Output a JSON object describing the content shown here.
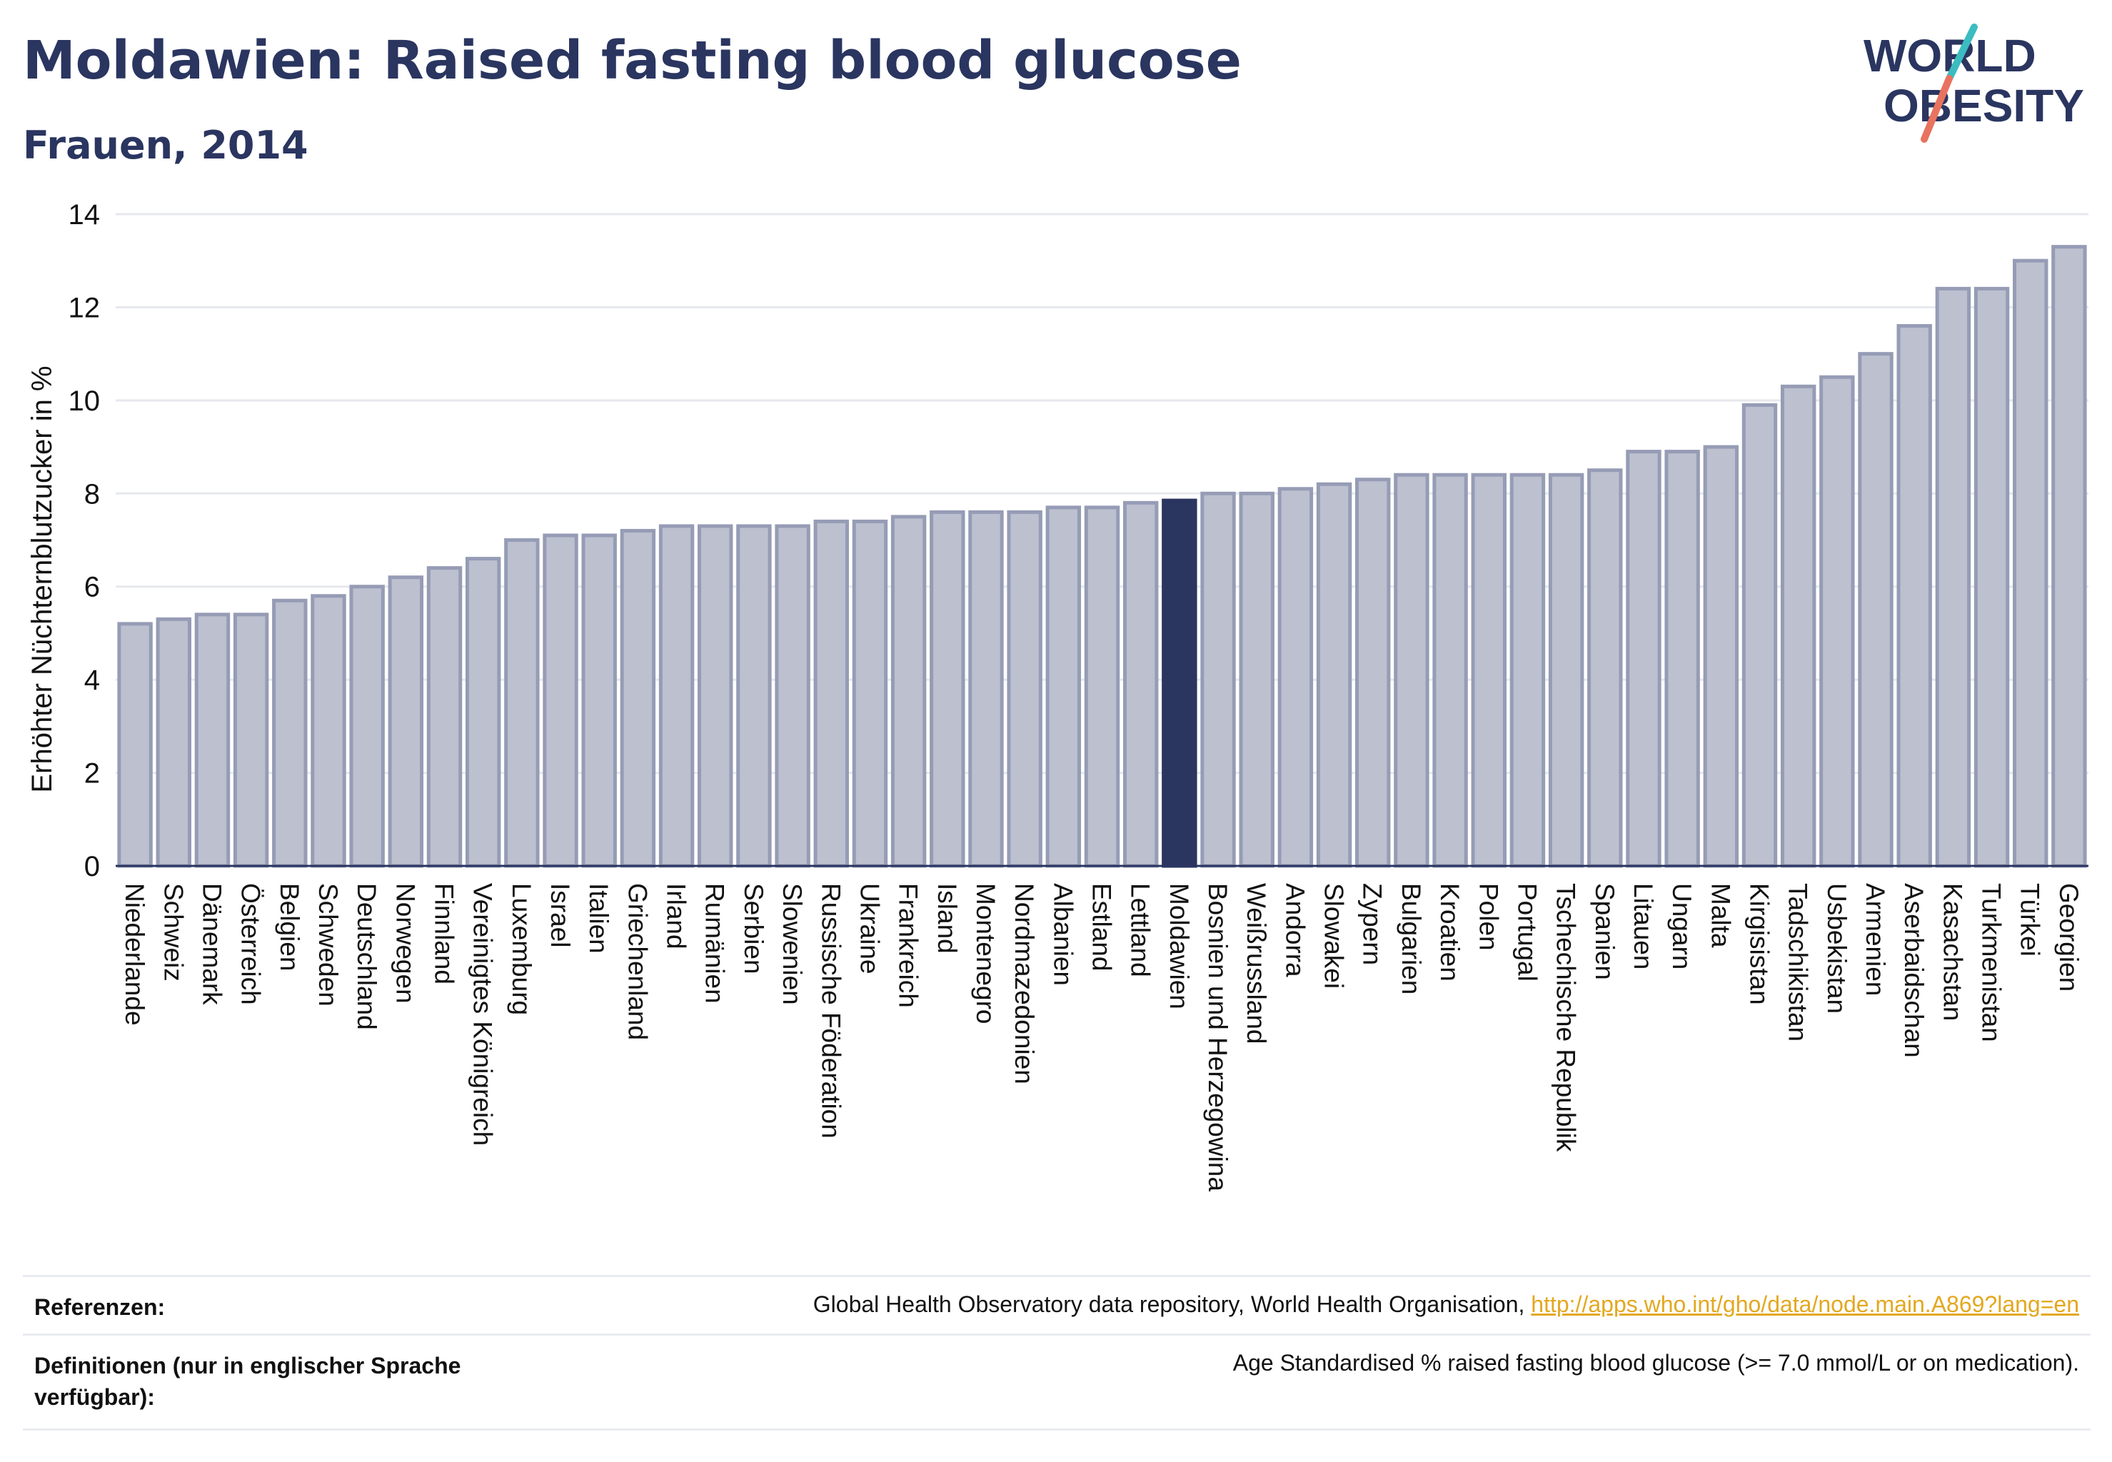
{
  "header": {
    "title": "Moldawien: Raised fasting blood glucose",
    "subtitle": "Frauen, 2014"
  },
  "logo": {
    "line1": "WORLD",
    "line2": "OBESITY",
    "icon": "world-obesity-logo"
  },
  "colors": {
    "bar": "#bcc0cf",
    "bar_border": "#969cb5",
    "highlight": "#2a3560",
    "grid": "#e6e8ee",
    "text": "#2a3560"
  },
  "chart_data": {
    "type": "bar",
    "title": "Moldawien: Raised fasting blood glucose",
    "subtitle": "Frauen, 2014",
    "ylabel": "Erhöhter Nüchternblutzucker in %",
    "xlabel": "",
    "ylim": [
      0,
      14
    ],
    "yticks": [
      0,
      2,
      4,
      6,
      8,
      10,
      12,
      14
    ],
    "grid": true,
    "highlight": "Moldawien",
    "categories": [
      "Niederlande",
      "Schweiz",
      "Dänemark",
      "Österreich",
      "Belgien",
      "Schweden",
      "Deutschland",
      "Norwegen",
      "Finnland",
      "Vereinigtes Königreich",
      "Luxemburg",
      "Israel",
      "Italien",
      "Griechenland",
      "Irland",
      "Rumänien",
      "Serbien",
      "Slowenien",
      "Russische Föderation",
      "Ukraine",
      "Frankreich",
      "Island",
      "Montenegro",
      "Nordmazedonien",
      "Albanien",
      "Estland",
      "Lettland",
      "Moldawien",
      "Bosnien und Herzegowina",
      "Weißrussland",
      "Andorra",
      "Slowakei",
      "Zypern",
      "Bulgarien",
      "Kroatien",
      "Polen",
      "Portugal",
      "Tschechische Republik",
      "Spanien",
      "Litauen",
      "Ungarn",
      "Malta",
      "Kirgisistan",
      "Tadschikistan",
      "Usbekistan",
      "Armenien",
      "Aserbaidschan",
      "Kasachstan",
      "Turkmenistan",
      "Türkei",
      "Georgien"
    ],
    "values": [
      5.2,
      5.3,
      5.4,
      5.4,
      5.7,
      5.8,
      6.0,
      6.2,
      6.4,
      6.6,
      7.0,
      7.1,
      7.1,
      7.2,
      7.3,
      7.3,
      7.3,
      7.3,
      7.4,
      7.4,
      7.5,
      7.6,
      7.6,
      7.6,
      7.7,
      7.7,
      7.8,
      7.85,
      8.0,
      8.0,
      8.1,
      8.2,
      8.3,
      8.4,
      8.4,
      8.4,
      8.4,
      8.4,
      8.5,
      8.9,
      8.9,
      9.0,
      9.9,
      10.3,
      10.5,
      11.0,
      11.6,
      12.4,
      12.4,
      13.0,
      13.3
    ]
  },
  "footer": {
    "references_label": "Referenzen:",
    "references_text": "Global Health Observatory data repository, World Health Organisation, ",
    "references_link": "http://apps.who.int/gho/data/node.main.A869?lang=en",
    "definitions_label": "Definitionen (nur in englischer Sprache verfügbar):",
    "definitions_text": "Age Standardised % raised fasting blood glucose (>= 7.0 mmol/L or on medication)."
  }
}
